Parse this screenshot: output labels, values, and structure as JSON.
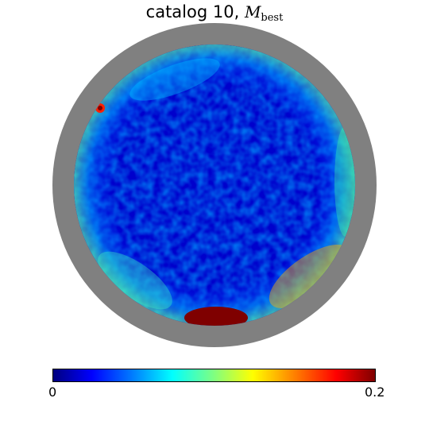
{
  "title": {
    "prefix": "catalog 10, ",
    "symbol": "M",
    "subscript": "best"
  },
  "colorbar": {
    "min_label": "0",
    "max_label": "0.2",
    "colormap": "jet",
    "colors": [
      "#00007f",
      "#0000ff",
      "#0080ff",
      "#00ffff",
      "#80ff80",
      "#ffff00",
      "#ff8000",
      "#ff0000",
      "#7f0000"
    ]
  },
  "map": {
    "ring_color": "#808080",
    "background_level": "low",
    "hot_region": "bottom rim"
  }
}
